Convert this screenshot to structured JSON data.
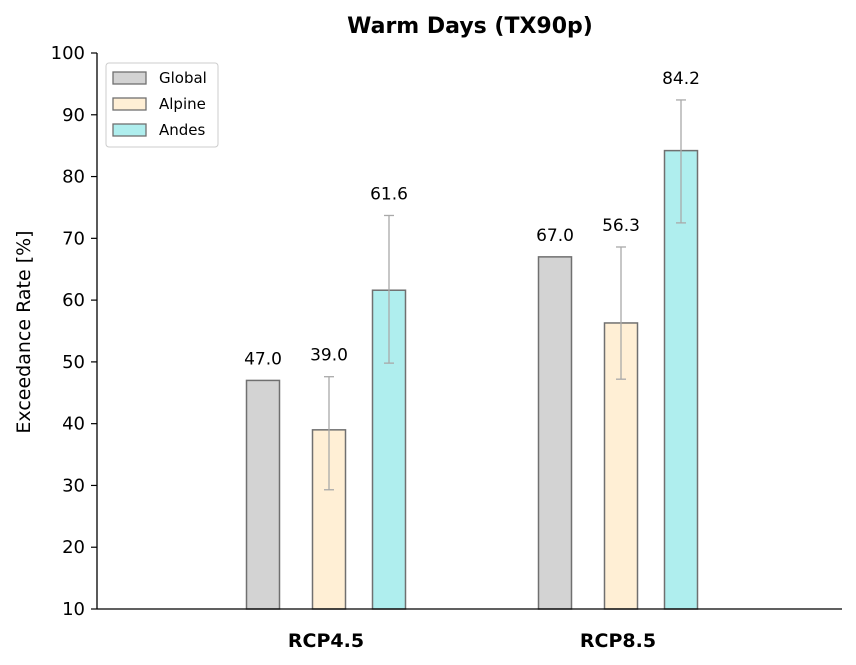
{
  "chart_data": {
    "type": "bar",
    "title": "Warm Days (TX90p)",
    "xlabel": "",
    "ylabel": "Exceedance Rate [%]",
    "ylim": [
      10,
      100
    ],
    "yticks": [
      10,
      20,
      30,
      40,
      50,
      60,
      70,
      80,
      90,
      100
    ],
    "categories": [
      "RCP4.5",
      "RCP8.5"
    ],
    "legend_position": "top-left",
    "grid": false,
    "series": [
      {
        "name": "Global",
        "color": "#d3d3d3",
        "values": [
          47.0,
          67.0
        ],
        "value_labels": [
          "47.0",
          "67.0"
        ],
        "error": [
          null,
          null
        ]
      },
      {
        "name": "Alpine",
        "color": "#ffefd5",
        "values": [
          39.0,
          56.3
        ],
        "value_labels": [
          "39.0",
          "56.3"
        ],
        "error": [
          [
            29.3,
            47.6
          ],
          [
            47.2,
            68.6
          ]
        ]
      },
      {
        "name": "Andes",
        "color": "#afeeee",
        "values": [
          61.6,
          84.2
        ],
        "value_labels": [
          "61.6",
          "84.2"
        ],
        "error": [
          [
            49.8,
            73.7
          ],
          [
            72.5,
            92.4
          ]
        ]
      }
    ]
  }
}
